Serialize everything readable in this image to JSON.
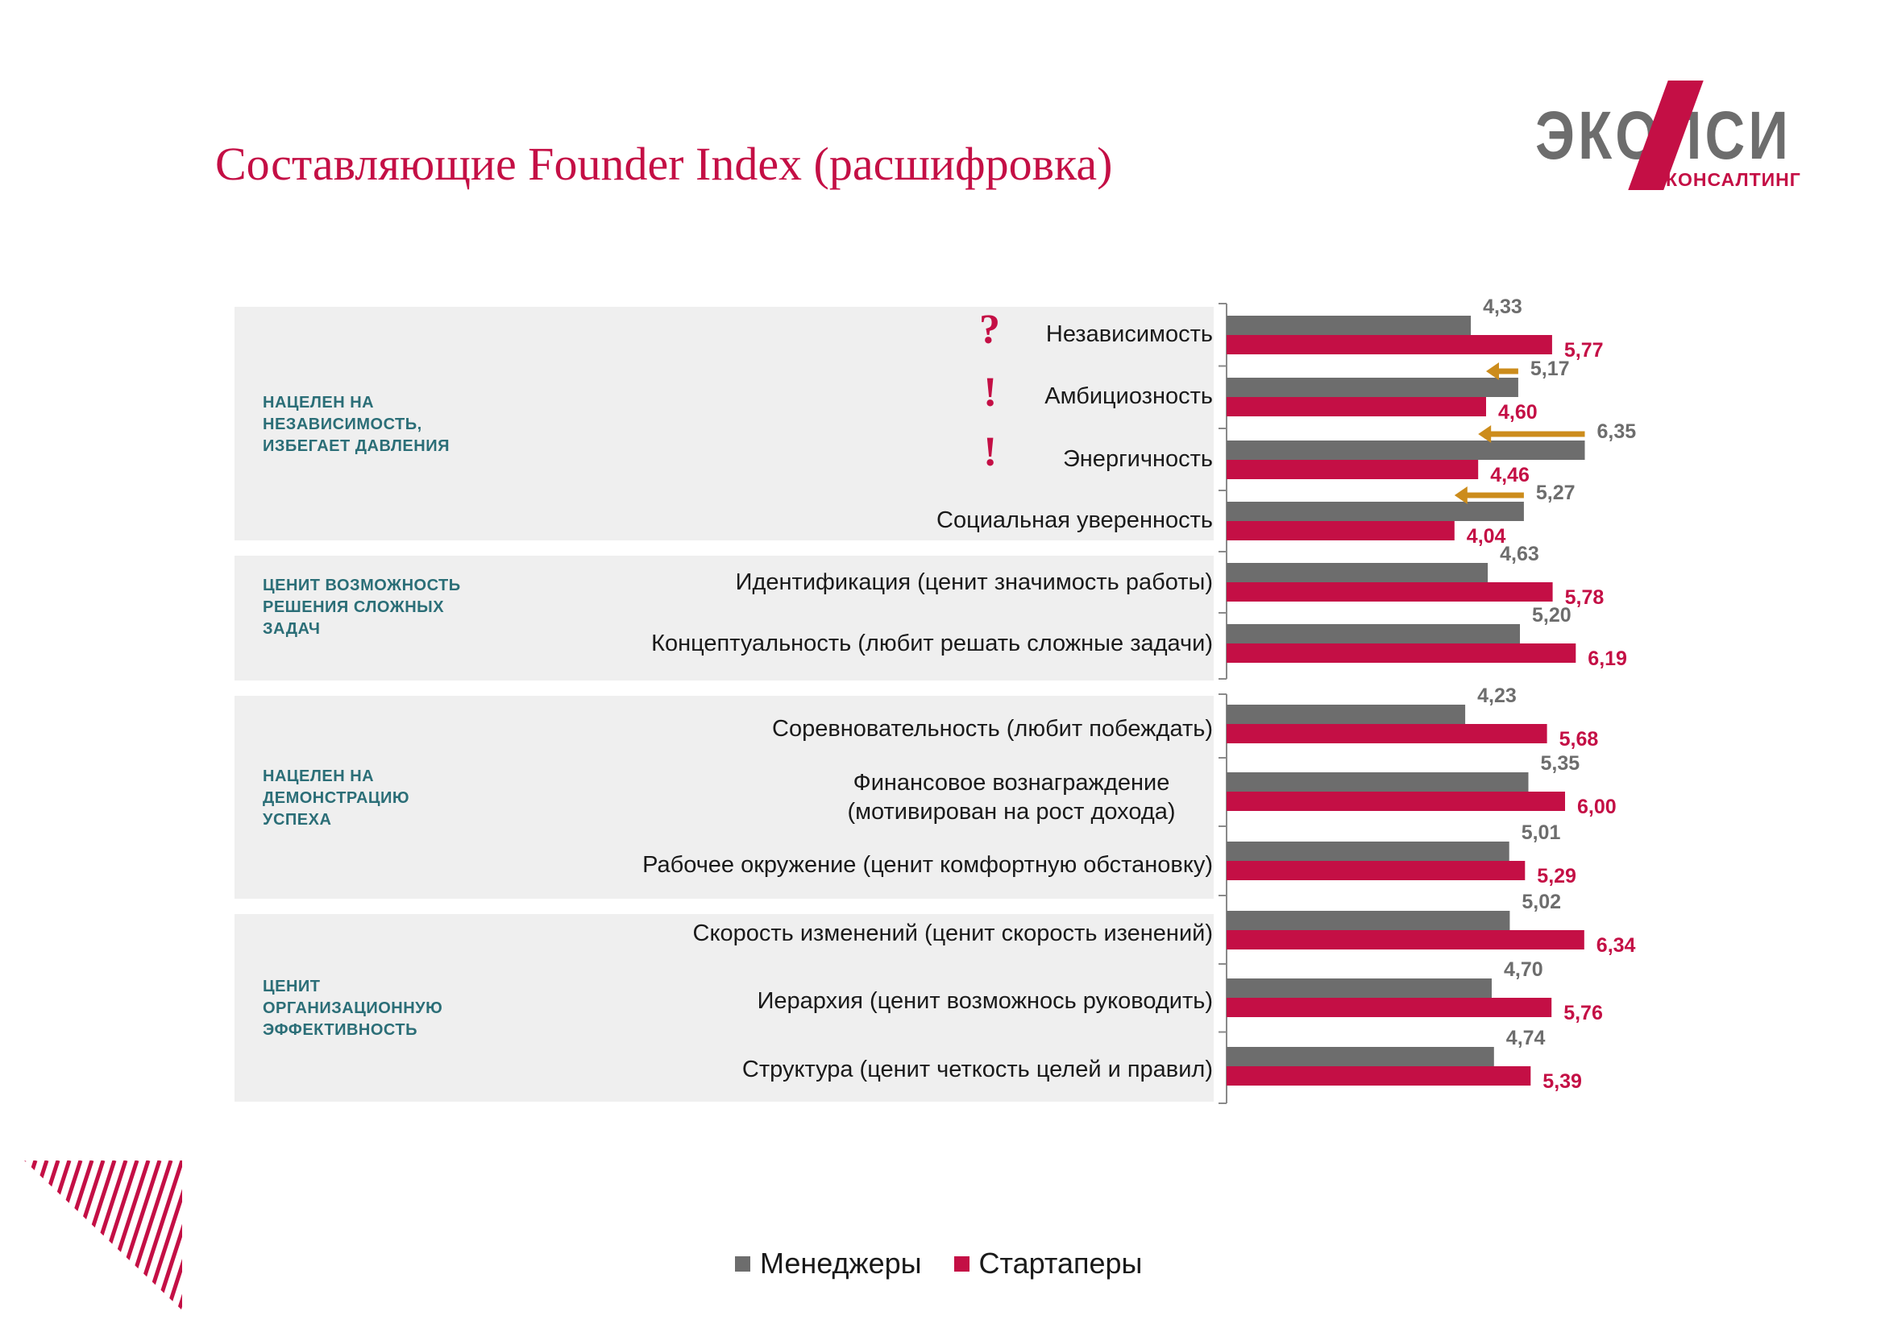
{
  "title": "Составляющие Founder Index (расшифровка)",
  "logo": {
    "brand": "ЭКОПСИ",
    "sub": "КОНСАЛТИНГ"
  },
  "colors": {
    "managers": "#6d6d6d",
    "starters": "#c40f45",
    "arrow": "#cc8c1c",
    "group_bg": "#efefef",
    "group_text": "#2b6e77"
  },
  "groups": [
    {
      "label": "НАЦЕЛЕН НА НЕЗАВИСИМОСТЬ, ИЗБЕГАЕТ ДАВЛЕНИЯ"
    },
    {
      "label": "ЦЕНИТ ВОЗМОЖНОСТЬ РЕШЕНИЯ СЛОЖНЫХ ЗАДАЧ"
    },
    {
      "label": "НАЦЕЛЕН НА ДЕМОНСТРАЦИЮ УСПЕХА"
    },
    {
      "label": "ЦЕНИТ ОРГАНИЗАЦИОННУЮ ЭФФЕКТИВНОСТЬ"
    }
  ],
  "marks": [
    "?",
    "!",
    "!"
  ],
  "legend": {
    "managers": "Менеджеры",
    "starters": "Стартаперы"
  },
  "chart_data": {
    "type": "bar",
    "orientation": "horizontal",
    "categories": [
      "Независимость",
      "Амбициозность",
      "Энергичность",
      "Социальная уверенность",
      "Идентификация (ценит значимость работы)",
      "Концептуальность (любит решать сложные задачи)",
      "Соревновательность (любит побеждать)",
      "Финансовое вознаграждение (мотивирован на рост дохода)",
      "Рабочее окружение (ценит комфортную обстановку)",
      "Скорость изменений (ценит скорость изенений)",
      "Иерархия (ценит возможнось руководить)",
      "Структура (ценит четкость целей и правил)"
    ],
    "series": [
      {
        "name": "Менеджеры",
        "values": [
          4.33,
          5.17,
          6.35,
          5.27,
          4.63,
          5.2,
          4.23,
          5.35,
          5.01,
          5.02,
          4.7,
          4.74
        ],
        "labels": [
          "4,33",
          "5,17",
          "6,35",
          "5,27",
          "4,63",
          "5,20",
          "4,23",
          "5,35",
          "5,01",
          "5,02",
          "4,70",
          "4,74"
        ]
      },
      {
        "name": "Стартаперы",
        "values": [
          5.77,
          4.6,
          4.46,
          4.04,
          5.78,
          6.19,
          5.68,
          6.0,
          5.29,
          6.34,
          5.76,
          5.39
        ],
        "labels": [
          "5,77",
          "4,60",
          "4,46",
          "4,04",
          "5,78",
          "6,19",
          "5,68",
          "6,00",
          "5,29",
          "6,34",
          "5,76",
          "5,39"
        ]
      }
    ],
    "xlim": [
      0,
      7
    ],
    "grid": false,
    "legend_position": "bottom",
    "decline_arrows": [
      "Амбициозность",
      "Энергичность",
      "Социальная уверенность"
    ]
  }
}
